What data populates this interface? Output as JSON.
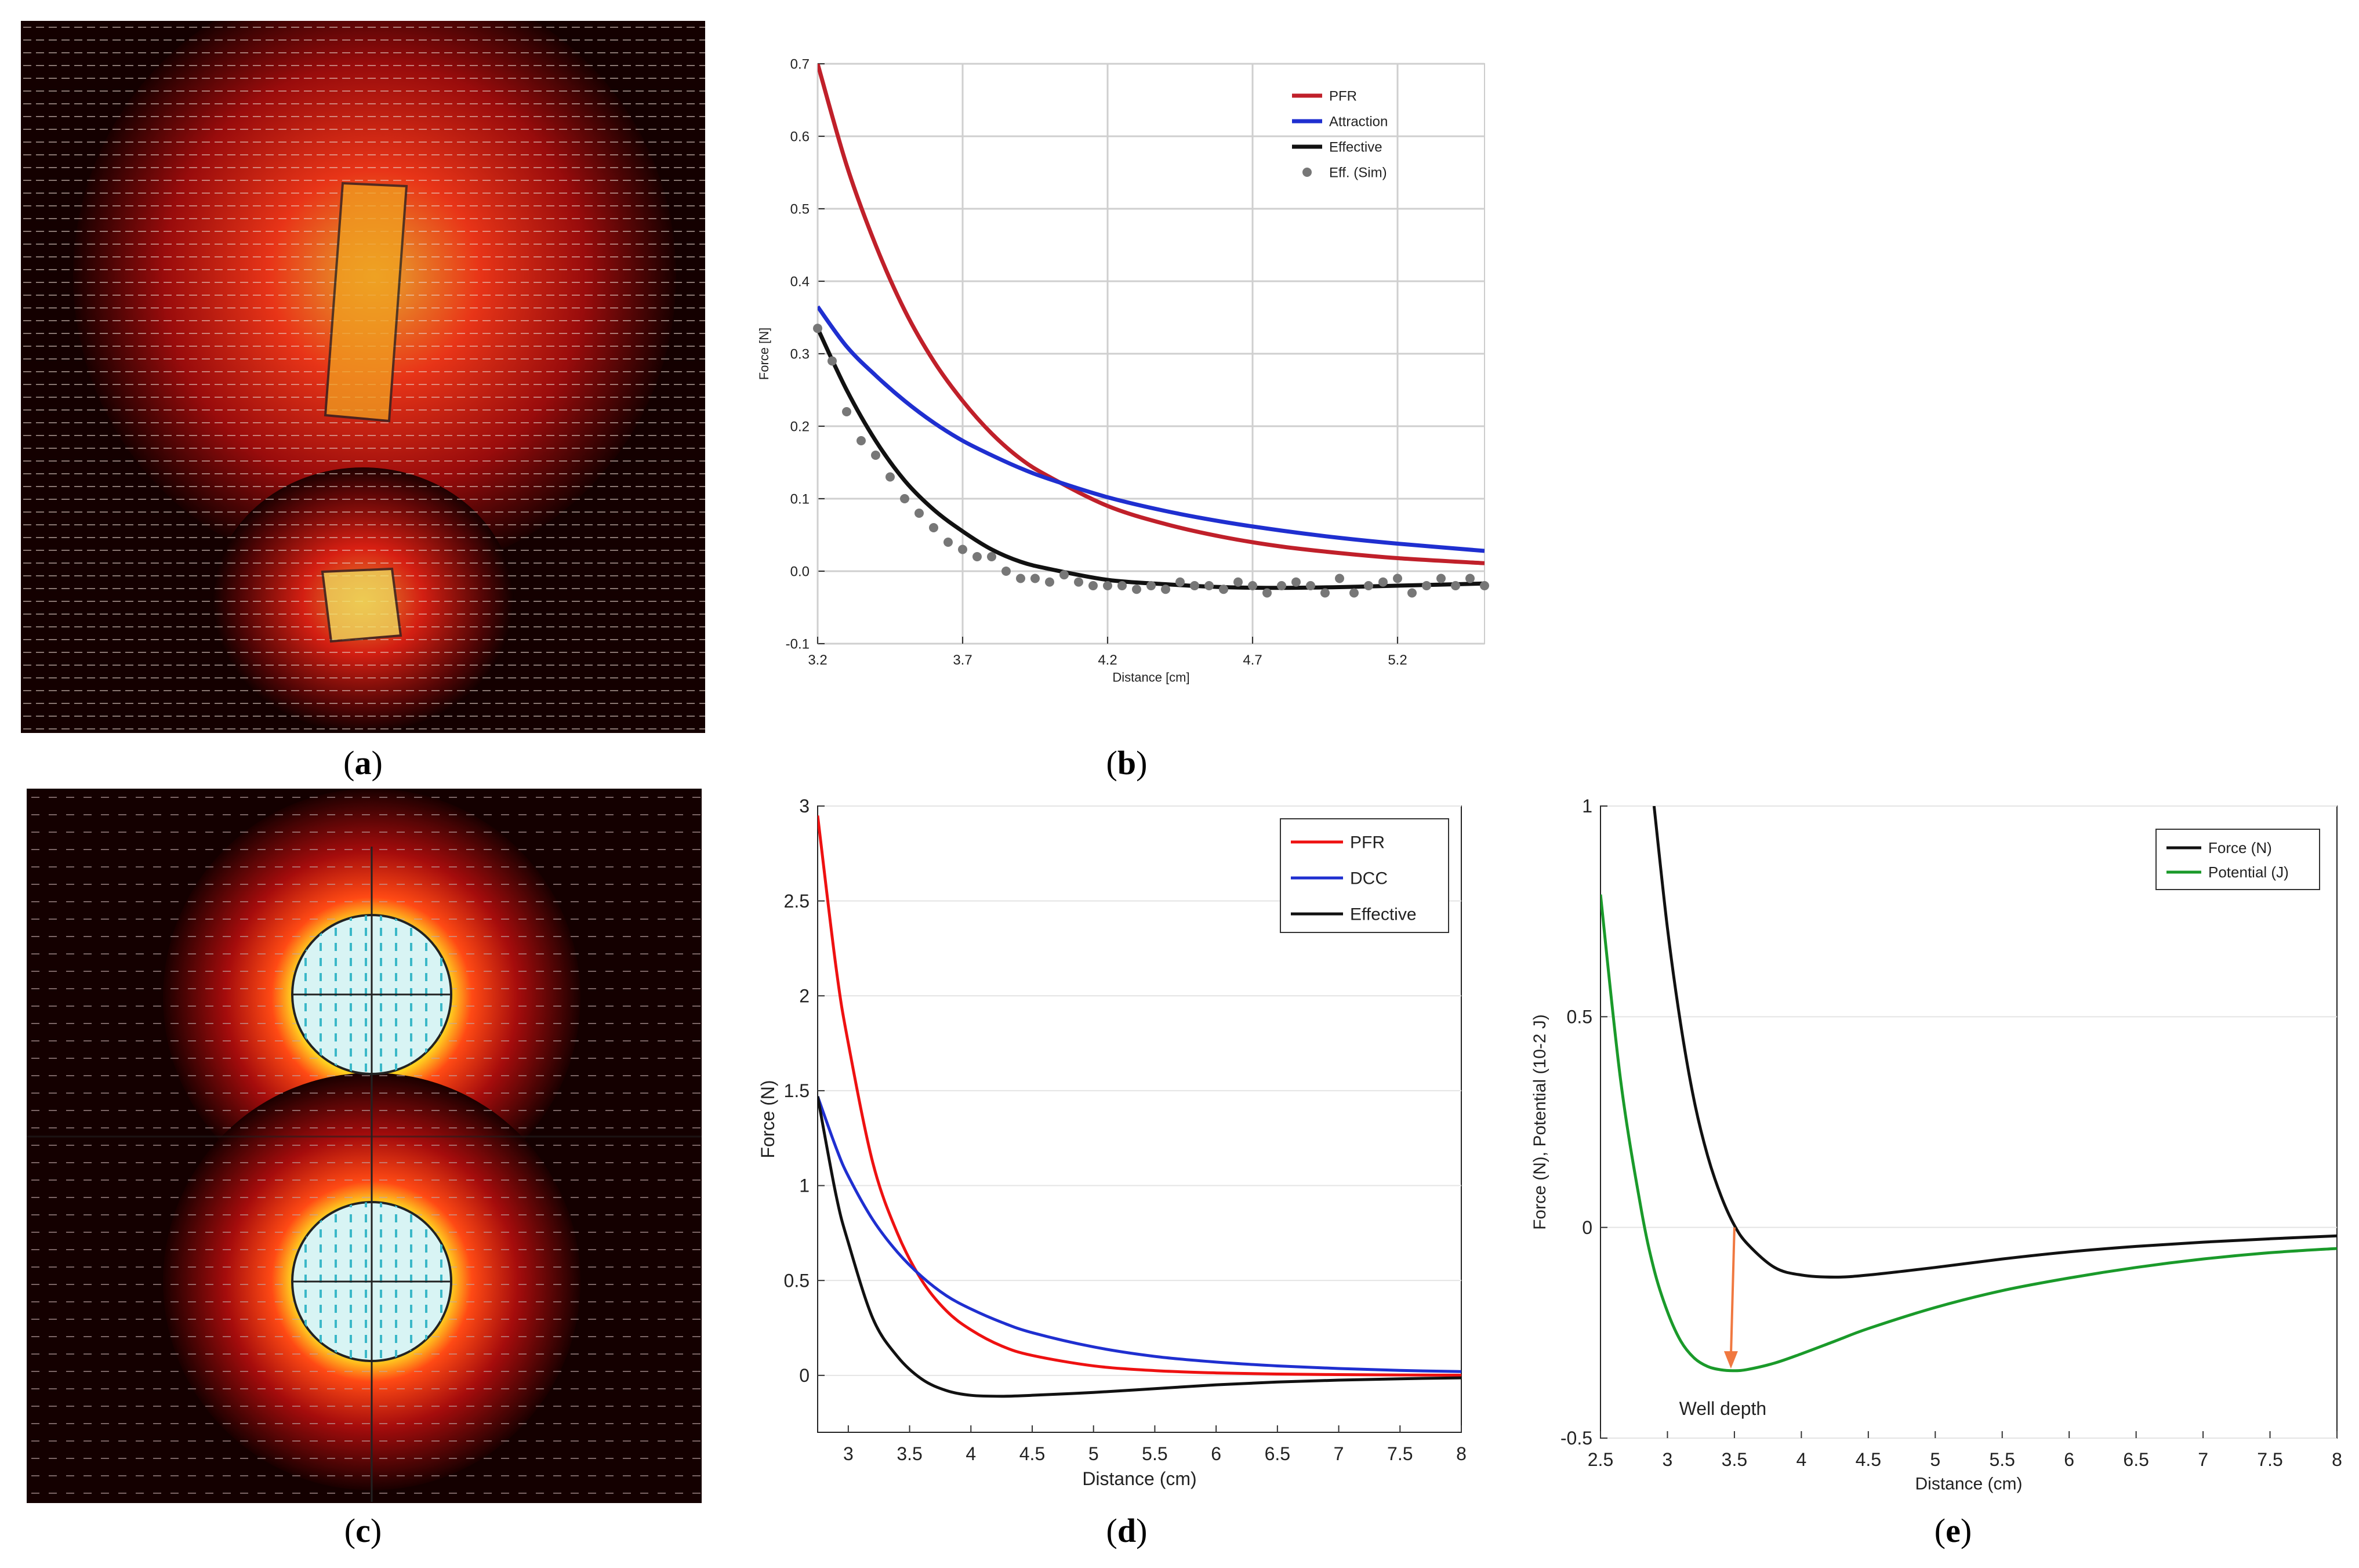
{
  "captions": {
    "a": {
      "open": "(",
      "letter": "a",
      "close": ")"
    },
    "b": {
      "open": "(",
      "letter": "b",
      "close": ")"
    },
    "c": {
      "open": "(",
      "letter": "c",
      "close": ")"
    },
    "d": {
      "open": "(",
      "letter": "d",
      "close": ")"
    },
    "e": {
      "open": "(",
      "letter": "e",
      "close": ")"
    }
  },
  "colors": {
    "red_b": "#c0202a",
    "blue": "#1f2fd0",
    "black": "#111111",
    "red_d": "#ee1111",
    "green": "#1a9a2a",
    "arrow": "#f07840",
    "sim": "#777777"
  },
  "chart_data": [
    {
      "id": "b",
      "type": "line",
      "title": "",
      "xlabel": "Distance [cm]",
      "ylabel": "Force [N]",
      "xlim": [
        3.2,
        5.5
      ],
      "ylim": [
        -0.1,
        0.7
      ],
      "xticks": [
        "3.2",
        "3.7",
        "4.2",
        "4.7",
        "5.2"
      ],
      "yticks": [
        "-0.1",
        "0.0",
        "0.1",
        "0.2",
        "0.3",
        "0.4",
        "0.5",
        "0.6",
        "0.7"
      ],
      "grid": true,
      "legend_position": "top-right",
      "x": [
        3.2,
        3.3,
        3.4,
        3.5,
        3.6,
        3.7,
        3.8,
        3.9,
        4.0,
        4.2,
        4.4,
        4.6,
        4.8,
        5.0,
        5.2,
        5.5
      ],
      "series": [
        {
          "name": "PFR",
          "values": [
            0.7,
            0.56,
            0.45,
            0.36,
            0.29,
            0.235,
            0.19,
            0.155,
            0.13,
            0.09,
            0.065,
            0.047,
            0.034,
            0.025,
            0.018,
            0.011
          ]
        },
        {
          "name": "Attraction",
          "values": [
            0.365,
            0.31,
            0.27,
            0.235,
            0.205,
            0.18,
            0.16,
            0.142,
            0.127,
            0.102,
            0.083,
            0.068,
            0.056,
            0.046,
            0.038,
            0.028
          ]
        },
        {
          "name": "Effective",
          "values": [
            0.335,
            0.25,
            0.18,
            0.125,
            0.085,
            0.055,
            0.03,
            0.013,
            0.003,
            -0.012,
            -0.018,
            -0.022,
            -0.023,
            -0.022,
            -0.02,
            -0.017
          ]
        }
      ],
      "sim_series": {
        "name": "Eff. (Sim)",
        "x": [
          3.2,
          3.25,
          3.3,
          3.35,
          3.4,
          3.45,
          3.5,
          3.55,
          3.6,
          3.65,
          3.7,
          3.75,
          3.8,
          3.85,
          3.9,
          3.95,
          4.0,
          4.05,
          4.1,
          4.15,
          4.2,
          4.25,
          4.3,
          4.35,
          4.4,
          4.45,
          4.5,
          4.55,
          4.6,
          4.65,
          4.7,
          4.75,
          4.8,
          4.85,
          4.9,
          4.95,
          5.0,
          5.05,
          5.1,
          5.15,
          5.2,
          5.25,
          5.3,
          5.35,
          5.4,
          5.45,
          5.5
        ],
        "values": [
          0.335,
          0.29,
          0.22,
          0.18,
          0.16,
          0.13,
          0.1,
          0.08,
          0.06,
          0.04,
          0.03,
          0.02,
          0.02,
          0.0,
          -0.01,
          -0.01,
          -0.015,
          -0.005,
          -0.015,
          -0.02,
          -0.02,
          -0.02,
          -0.025,
          -0.02,
          -0.025,
          -0.015,
          -0.02,
          -0.02,
          -0.025,
          -0.015,
          -0.02,
          -0.03,
          -0.02,
          -0.015,
          -0.02,
          -0.03,
          -0.01,
          -0.03,
          -0.02,
          -0.015,
          -0.01,
          -0.03,
          -0.02,
          -0.01,
          -0.02,
          -0.01,
          -0.02
        ]
      },
      "legend": [
        "PFR",
        "Attraction",
        "Effective",
        "Eff. (Sim)"
      ]
    },
    {
      "id": "d",
      "type": "line",
      "title": "",
      "xlabel": "Distance (cm)",
      "ylabel": "Force (N)",
      "xlim": [
        2.75,
        8
      ],
      "ylim": [
        -0.3,
        3
      ],
      "xticks": [
        "3",
        "3.5",
        "4",
        "4.5",
        "5",
        "5.5",
        "6",
        "6.5",
        "7",
        "7.5",
        "8"
      ],
      "yticks": [
        "0",
        "0.5",
        "1",
        "1.5",
        "2",
        "2.5",
        "3"
      ],
      "grid": true,
      "legend_position": "top-right",
      "x": [
        2.75,
        2.9,
        3.0,
        3.2,
        3.4,
        3.6,
        3.8,
        4.0,
        4.25,
        4.5,
        5.0,
        5.5,
        6.0,
        6.5,
        7.0,
        7.5,
        8.0
      ],
      "series": [
        {
          "name": "PFR",
          "values": [
            2.95,
            2.15,
            1.75,
            1.12,
            0.75,
            0.5,
            0.34,
            0.24,
            0.155,
            0.105,
            0.05,
            0.025,
            0.013,
            0.007,
            0.004,
            0.002,
            0.001
          ]
        },
        {
          "name": "DCC",
          "values": [
            1.47,
            1.2,
            1.05,
            0.82,
            0.65,
            0.52,
            0.42,
            0.35,
            0.28,
            0.225,
            0.15,
            0.1,
            0.07,
            0.05,
            0.036,
            0.026,
            0.02
          ]
        },
        {
          "name": "Effective",
          "values": [
            1.47,
            0.95,
            0.7,
            0.3,
            0.1,
            -0.02,
            -0.08,
            -0.105,
            -0.11,
            -0.105,
            -0.09,
            -0.07,
            -0.05,
            -0.035,
            -0.025,
            -0.018,
            -0.013
          ]
        }
      ],
      "legend": [
        "PFR",
        "DCC",
        "Effective"
      ]
    },
    {
      "id": "e",
      "type": "line",
      "title": "",
      "xlabel": "Distance (cm)",
      "ylabel": "Force (N), Potential (10-2 J)",
      "xlim": [
        2.5,
        8
      ],
      "ylim": [
        -0.5,
        1
      ],
      "xticks": [
        "2.5",
        "3",
        "3.5",
        "4",
        "4.5",
        "5",
        "5.5",
        "6",
        "6.5",
        "7",
        "7.5",
        "8"
      ],
      "yticks": [
        "-0.5",
        "0",
        "0.5",
        "1"
      ],
      "grid": true,
      "legend_position": "top-right",
      "x": [
        2.5,
        2.65,
        2.8,
        2.9,
        3.0,
        3.1,
        3.2,
        3.3,
        3.4,
        3.5,
        3.6,
        3.8,
        4.0,
        4.25,
        4.5,
        5.0,
        5.5,
        6.0,
        6.5,
        7.0,
        7.5,
        8.0
      ],
      "series": [
        {
          "name": "Force (N)",
          "values": [
            null,
            null,
            null,
            1.0,
            0.71,
            0.48,
            0.3,
            0.17,
            0.075,
            0.005,
            -0.04,
            -0.095,
            -0.113,
            -0.118,
            -0.113,
            -0.095,
            -0.075,
            -0.058,
            -0.045,
            -0.035,
            -0.027,
            -0.02
          ]
        },
        {
          "name": "Potential (J)",
          "values": [
            0.79,
            0.35,
            0.05,
            -0.1,
            -0.2,
            -0.27,
            -0.31,
            -0.33,
            -0.338,
            -0.34,
            -0.337,
            -0.322,
            -0.3,
            -0.27,
            -0.24,
            -0.19,
            -0.15,
            -0.12,
            -0.095,
            -0.075,
            -0.06,
            -0.05
          ]
        }
      ],
      "annotation": {
        "text": "Well depth",
        "x": 3.5,
        "y_from": 0.0,
        "y_to": -0.335
      },
      "legend": [
        "Force (N)",
        "Potential (J)"
      ]
    }
  ]
}
